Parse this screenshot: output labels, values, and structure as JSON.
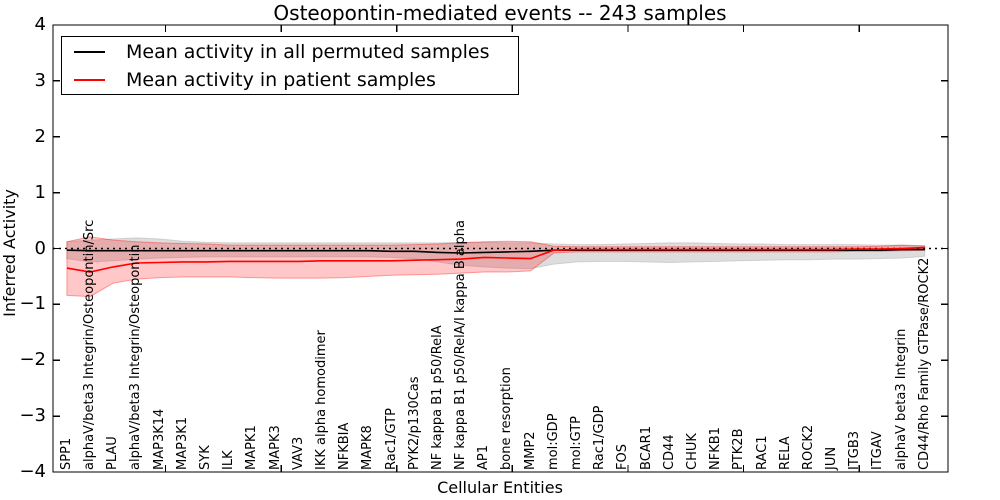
{
  "chart_data": {
    "type": "line",
    "title": "Osteopontin-mediated events -- 243 samples",
    "xlabel": "Cellular Entities",
    "ylabel": "Inferred Activity",
    "ylim": [
      -4,
      4
    ],
    "yticks": [
      4,
      3,
      2,
      1,
      0,
      -1,
      -2,
      -3,
      -4
    ],
    "ytick_labels": [
      "4",
      "3",
      "2",
      "1",
      "0",
      "−1",
      "−2",
      "−3",
      "−4"
    ],
    "grid": false,
    "zero_line": true,
    "legend_position": "upper left",
    "categories": [
      "SPP1",
      "alphaV/beta3 Integrin/Osteopontin/Src",
      "PLAU",
      "alphaV/beta3 Integrin/Osteopontin",
      "MAP3K14",
      "MAP3K1",
      "SYK",
      "ILK",
      "MAPK1",
      "MAPK3",
      "VAV3",
      "IKK alpha homodimer",
      "NFKBIA",
      "MAPK8",
      "Rac1/GTP",
      "PYK2/p130Cas",
      "NF kappa B1 p50/RelA",
      "NF kappa B1 p50/RelA/I kappa B alpha",
      "AP1",
      "bone resorption",
      "MMP2",
      "mol:GDP",
      "mol:GTP",
      "Rac1/GDP",
      "FOS",
      "BCAR1",
      "CD44",
      "CHUK",
      "NFKB1",
      "PTK2B",
      "RAC1",
      "RELA",
      "ROCK2",
      "JUN",
      "ITGB3",
      "ITGAV",
      "alphaV beta3 Integrin",
      "CD44/Rho Family GTPase/ROCK2"
    ],
    "series": [
      {
        "name": "Mean activity in all permuted samples",
        "color": "#000000",
        "band_color": "#bbbbbb",
        "values": [
          -0.03,
          -0.04,
          -0.04,
          -0.04,
          -0.04,
          -0.04,
          -0.04,
          -0.04,
          -0.04,
          -0.04,
          -0.04,
          -0.04,
          -0.04,
          -0.04,
          -0.05,
          -0.05,
          -0.07,
          -0.08,
          -0.07,
          -0.06,
          -0.05,
          -0.03,
          -0.03,
          -0.03,
          -0.03,
          -0.03,
          -0.03,
          -0.03,
          -0.03,
          -0.03,
          -0.03,
          -0.03,
          -0.03,
          -0.03,
          -0.03,
          -0.03,
          -0.02,
          -0.02
        ],
        "band_upper": [
          0.12,
          0.15,
          0.17,
          0.19,
          0.17,
          0.13,
          0.11,
          0.1,
          0.1,
          0.1,
          0.1,
          0.1,
          0.1,
          0.1,
          0.1,
          0.1,
          0.1,
          0.11,
          0.11,
          0.1,
          0.1,
          0.08,
          0.07,
          0.07,
          0.08,
          0.09,
          0.1,
          0.1,
          0.09,
          0.08,
          0.08,
          0.07,
          0.07,
          0.07,
          0.07,
          0.06,
          0.06,
          0.04
        ],
        "band_lower": [
          -0.18,
          -0.24,
          -0.22,
          -0.19,
          -0.17,
          -0.16,
          -0.15,
          -0.15,
          -0.15,
          -0.15,
          -0.15,
          -0.15,
          -0.15,
          -0.15,
          -0.16,
          -0.18,
          -0.24,
          -0.3,
          -0.33,
          -0.35,
          -0.36,
          -0.28,
          -0.24,
          -0.23,
          -0.23,
          -0.24,
          -0.25,
          -0.24,
          -0.23,
          -0.22,
          -0.21,
          -0.2,
          -0.2,
          -0.19,
          -0.19,
          -0.18,
          -0.17,
          -0.14
        ]
      },
      {
        "name": "Mean activity in patient samples",
        "color": "#ff0000",
        "band_color": "#ff0000",
        "values": [
          -0.35,
          -0.42,
          -0.33,
          -0.26,
          -0.25,
          -0.24,
          -0.24,
          -0.23,
          -0.23,
          -0.23,
          -0.23,
          -0.22,
          -0.22,
          -0.22,
          -0.22,
          -0.21,
          -0.2,
          -0.19,
          -0.16,
          -0.17,
          -0.18,
          -0.03,
          -0.02,
          -0.02,
          -0.02,
          -0.02,
          -0.02,
          -0.02,
          -0.02,
          -0.02,
          -0.02,
          -0.02,
          -0.02,
          -0.02,
          -0.01,
          -0.01,
          0.0,
          0.02
        ],
        "band_upper": [
          0.12,
          0.21,
          0.15,
          0.12,
          0.1,
          0.09,
          0.08,
          0.06,
          0.06,
          0.06,
          0.06,
          0.06,
          0.06,
          0.06,
          0.06,
          0.07,
          0.08,
          0.1,
          0.12,
          0.13,
          0.12,
          0.04,
          0.03,
          0.03,
          0.03,
          0.03,
          0.03,
          0.03,
          0.03,
          0.03,
          0.03,
          0.03,
          0.03,
          0.03,
          0.03,
          0.04,
          0.06,
          0.05
        ],
        "band_lower": [
          -0.84,
          -0.86,
          -0.62,
          -0.55,
          -0.52,
          -0.51,
          -0.51,
          -0.51,
          -0.52,
          -0.53,
          -0.53,
          -0.53,
          -0.52,
          -0.5,
          -0.48,
          -0.47,
          -0.46,
          -0.44,
          -0.42,
          -0.42,
          -0.4,
          -0.08,
          -0.06,
          -0.06,
          -0.06,
          -0.06,
          -0.06,
          -0.06,
          -0.06,
          -0.06,
          -0.06,
          -0.06,
          -0.06,
          -0.06,
          -0.05,
          -0.05,
          -0.04,
          -0.03
        ]
      }
    ]
  }
}
